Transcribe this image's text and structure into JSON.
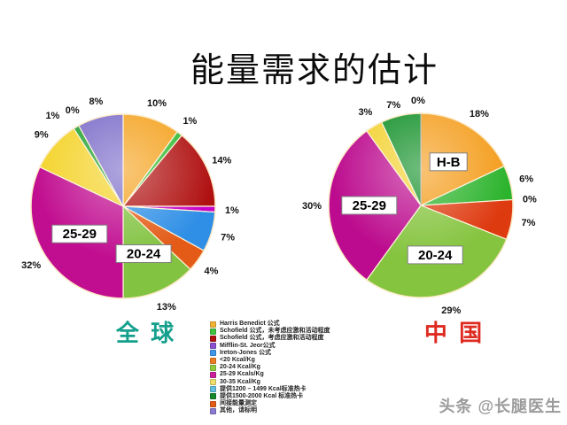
{
  "title": "能量需求的估计",
  "watermark": "头条 @长腿医生",
  "chart_data": [
    {
      "type": "pie",
      "name": "global",
      "title": "全 球",
      "title_color": "#14A08C",
      "units": "%",
      "slices": [
        {
          "name": "Harris Benedict 公式",
          "value": 10,
          "color": "#F4A11C"
        },
        {
          "name": "Schofield 公式，未考虑应激和活动程度",
          "value": 1,
          "color": "#2FBA2F"
        },
        {
          "name": "Schofield 公式，考虑应激和活动程度",
          "value": 14,
          "color": "#B01111"
        },
        {
          "name": "Mifflin-St. Jeor公式",
          "value": 1,
          "color": "#C800C8"
        },
        {
          "name": "Ireton-Jones 公式",
          "value": 7,
          "color": "#2F8FE6"
        },
        {
          "name": "<20 Kcal/Kg",
          "value": 4,
          "color": "#E35B17"
        },
        {
          "name": "20-24 Kcal/Kg",
          "value": 13,
          "color": "#82C341",
          "inner_label": "20-24"
        },
        {
          "name": "25-29 Kcals/Kg",
          "value": 32,
          "color": "#C10D90",
          "inner_label": "25-29"
        },
        {
          "name": "30-35 Kcal/Kg",
          "value": 9,
          "color": "#F4D32A"
        },
        {
          "name": "提供1500-2000 Kcal 标准热卡",
          "value": 1,
          "color": "#21A02F",
          "label_offset": [
            -17,
            3
          ]
        },
        {
          "name": "间接能量测定",
          "value": 0,
          "color": "#E25A14",
          "label_offset": [
            2,
            -1
          ]
        },
        {
          "name": "其他，请标明",
          "value": 8,
          "color": "#7A6AC8"
        }
      ]
    },
    {
      "type": "pie",
      "name": "china",
      "title": "中 国",
      "title_color": "#DE2A20",
      "units": "%",
      "slices": [
        {
          "name": "Harris Benedict 公式",
          "value": 18,
          "color": "#F49C1A",
          "inner_label": "H-B"
        },
        {
          "name": "Schofield 公式，未考虑应激和活动程度",
          "value": 6,
          "color": "#2BB32B"
        },
        {
          "name": "Schofield 公式，考虑应激和活动程度",
          "value": 0,
          "color": "#B01111"
        },
        {
          "name": "<20 Kcal/Kg",
          "value": 7,
          "color": "#DE3A10"
        },
        {
          "name": "20-24 Kcal/Kg",
          "value": 29,
          "color": "#85C43F",
          "inner_label": "20-24"
        },
        {
          "name": "25-29 Kcals/Kg",
          "value": 30,
          "color": "#BC0B8E",
          "inner_label": "25-29"
        },
        {
          "name": "30-35 Kcal/Kg",
          "value": 3,
          "color": "#F2D12F"
        },
        {
          "name": "提供1500-2000 Kcal 标准热卡",
          "value": 7,
          "color": "#0F8F26",
          "label_offset": [
            -4,
            6
          ]
        },
        {
          "name": "其他，请标明",
          "value": 0,
          "color": "#7A6AC8",
          "label_offset": [
            -3,
            4
          ]
        }
      ]
    }
  ],
  "legend": {
    "items": [
      {
        "label": "Harris Benedict 公式",
        "color": "#F2B233"
      },
      {
        "label": "Schofield 公式，未考虑应激和活动程度",
        "color": "#3FC43F"
      },
      {
        "label": "Schofield 公式，考虑应激和活动程度",
        "color": "#B01111"
      },
      {
        "label": "Mifflin-St. Jeor公式",
        "color": "#8A4FD0"
      },
      {
        "label": "Ireton-Jones 公式",
        "color": "#3E97EA"
      },
      {
        "label": "<20 Kcal/Kg",
        "color": "#EE7D22"
      },
      {
        "label": "20-24 Kcal/Kg",
        "color": "#8FCC3F"
      },
      {
        "label": "25-29 Kcals/Kg",
        "color": "#CB1F9C"
      },
      {
        "label": "30-35 Kcal/Kg",
        "color": "#EFDE6A"
      },
      {
        "label": "提供1200 – 1499 Kcal标准热卡",
        "color": "#5FC0DF"
      },
      {
        "label": "提供1500-2000 Kcal 标准热卡",
        "color": "#14882B"
      },
      {
        "label": "间接能量测定",
        "color": "#E25A14"
      },
      {
        "label": "其他，请标明",
        "color": "#8A7AD0"
      }
    ]
  }
}
